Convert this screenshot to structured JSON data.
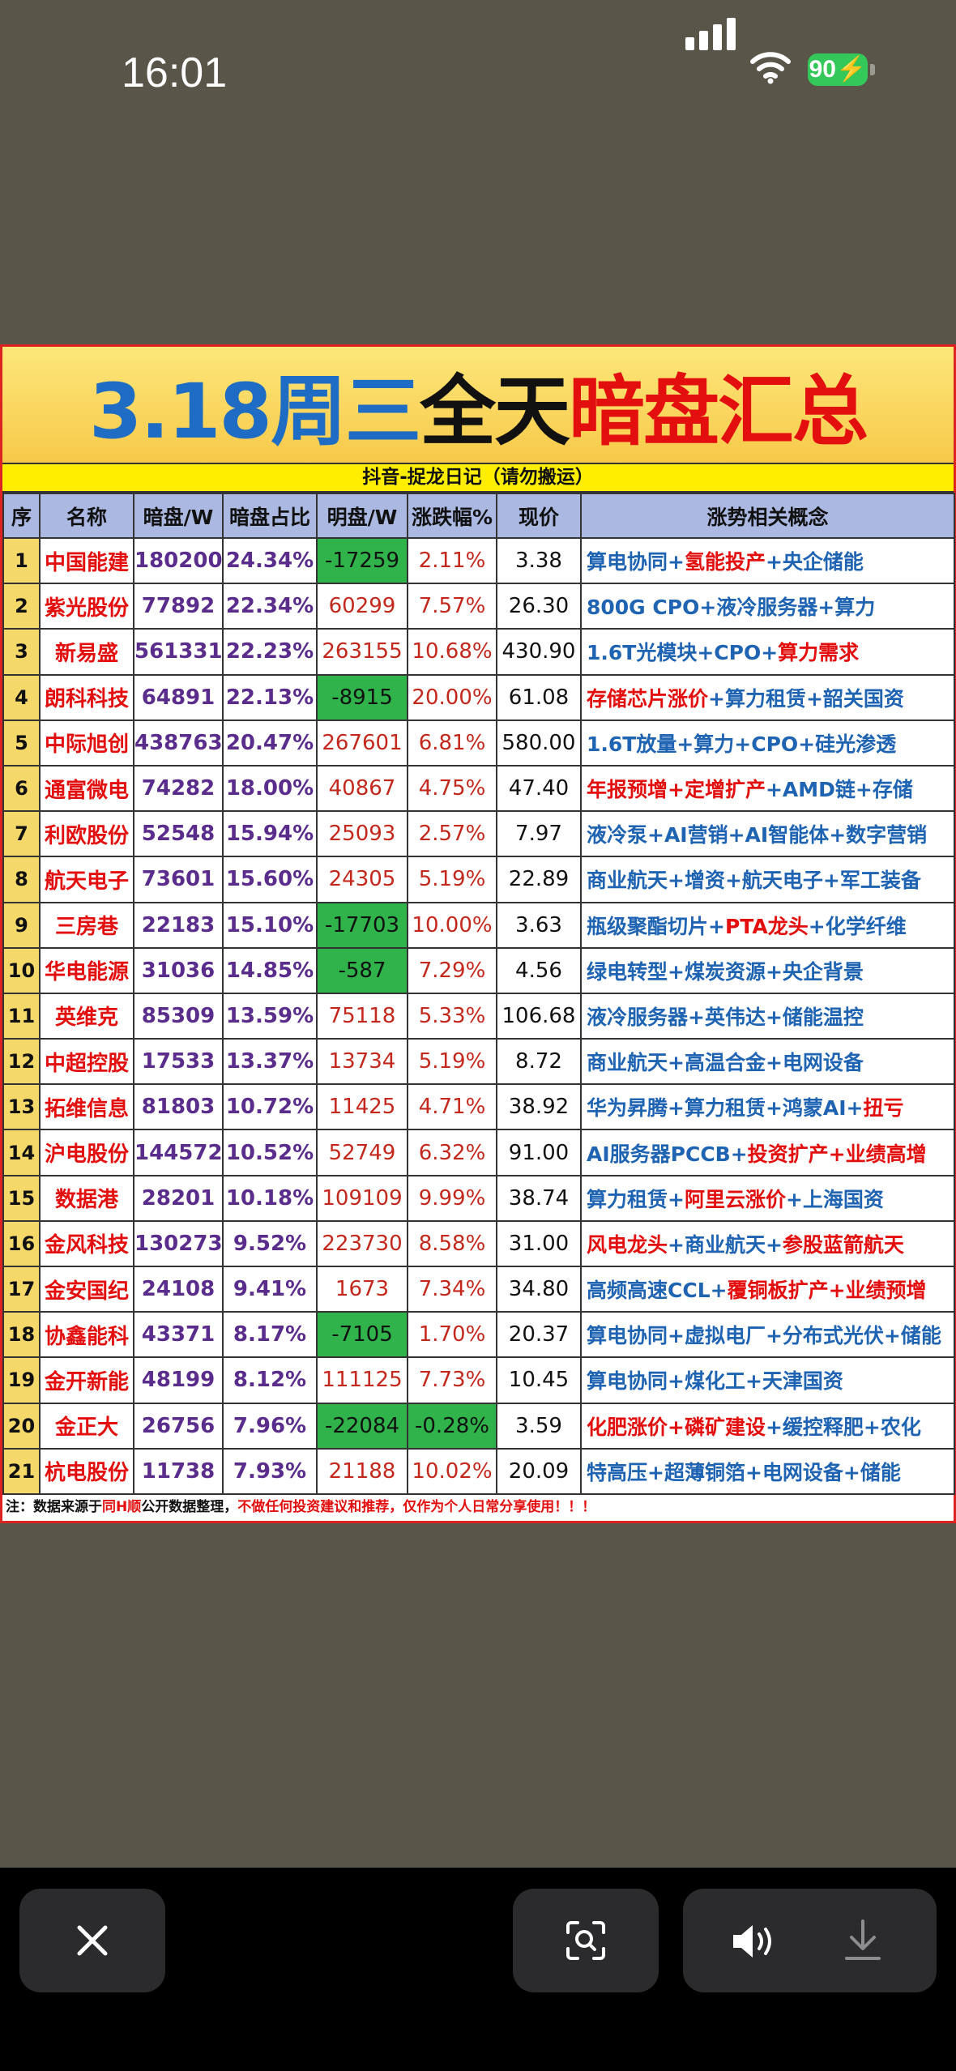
{
  "status": {
    "time": "16:01",
    "battery": "90"
  },
  "sheet": {
    "title_part1": "3.18周三",
    "title_part2": "全天",
    "title_part3": "暗盘汇总",
    "subtitle": "抖音-捉龙日记（请勿搬运）",
    "headers": [
      "序",
      "名称",
      "暗盘/W",
      "暗盘占比",
      "明盘/W",
      "涨跌幅%",
      "现价",
      "涨势相关概念"
    ],
    "rows": [
      {
        "idx": "1",
        "name": "中国能建",
        "dark": "180200",
        "pct": "24.34%",
        "ming": "-17259",
        "zd": "2.11%",
        "price": "3.38",
        "concept": [
          [
            "算电协同+",
            0
          ],
          [
            "氢能投产",
            1
          ],
          [
            "+央企储能",
            0
          ]
        ]
      },
      {
        "idx": "2",
        "name": "紫光股份",
        "dark": "77892",
        "pct": "22.34%",
        "ming": "60299",
        "zd": "7.57%",
        "price": "26.30",
        "concept": [
          [
            "800G CPO+液冷服务器+算力",
            0
          ]
        ]
      },
      {
        "idx": "3",
        "name": "新易盛",
        "dark": "561331",
        "pct": "22.23%",
        "ming": "263155",
        "zd": "10.68%",
        "price": "430.90",
        "concept": [
          [
            "1.6T光模块+CPO+",
            0
          ],
          [
            "算力需求",
            1
          ]
        ]
      },
      {
        "idx": "4",
        "name": "朗科科技",
        "dark": "64891",
        "pct": "22.13%",
        "ming": "-8915",
        "zd": "20.00%",
        "price": "61.08",
        "concept": [
          [
            "存储芯片涨价",
            1
          ],
          [
            "+算力租赁+韶关国资",
            0
          ]
        ]
      },
      {
        "idx": "5",
        "name": "中际旭创",
        "dark": "438763",
        "pct": "20.47%",
        "ming": "267601",
        "zd": "6.81%",
        "price": "580.00",
        "concept": [
          [
            "1.6T放量+算力+CPO+硅光渗透",
            0
          ]
        ]
      },
      {
        "idx": "6",
        "name": "通富微电",
        "dark": "74282",
        "pct": "18.00%",
        "ming": "40867",
        "zd": "4.75%",
        "price": "47.40",
        "concept": [
          [
            "年报预增+定增扩产",
            1
          ],
          [
            "+AMD链+存储",
            0
          ]
        ]
      },
      {
        "idx": "7",
        "name": "利欧股份",
        "dark": "52548",
        "pct": "15.94%",
        "ming": "25093",
        "zd": "2.57%",
        "price": "7.97",
        "concept": [
          [
            "液冷泵+AI营销+AI智能体+数字营销",
            0
          ]
        ]
      },
      {
        "idx": "8",
        "name": "航天电子",
        "dark": "73601",
        "pct": "15.60%",
        "ming": "24305",
        "zd": "5.19%",
        "price": "22.89",
        "concept": [
          [
            "商业航天+增资+航天电子+军工装备",
            0
          ]
        ]
      },
      {
        "idx": "9",
        "name": "三房巷",
        "dark": "22183",
        "pct": "15.10%",
        "ming": "-17703",
        "zd": "10.00%",
        "price": "3.63",
        "concept": [
          [
            "瓶级聚酯切片+",
            0
          ],
          [
            "PTA龙头",
            1
          ],
          [
            "+化学纤维",
            0
          ]
        ]
      },
      {
        "idx": "10",
        "name": "华电能源",
        "dark": "31036",
        "pct": "14.85%",
        "ming": "-587",
        "zd": "7.29%",
        "price": "4.56",
        "concept": [
          [
            "绿电转型+煤炭资源+央企背景",
            0
          ]
        ]
      },
      {
        "idx": "11",
        "name": "英维克",
        "dark": "85309",
        "pct": "13.59%",
        "ming": "75118",
        "zd": "5.33%",
        "price": "106.68",
        "concept": [
          [
            "液冷服务器+英伟达+储能温控",
            0
          ]
        ]
      },
      {
        "idx": "12",
        "name": "中超控股",
        "dark": "17533",
        "pct": "13.37%",
        "ming": "13734",
        "zd": "5.19%",
        "price": "8.72",
        "concept": [
          [
            "商业航天+高温合金+电网设备",
            0
          ]
        ]
      },
      {
        "idx": "13",
        "name": "拓维信息",
        "dark": "81803",
        "pct": "10.72%",
        "ming": "11425",
        "zd": "4.71%",
        "price": "38.92",
        "concept": [
          [
            "华为昇腾+算力租赁+鸿蒙AI+",
            0
          ],
          [
            "扭亏",
            1
          ]
        ]
      },
      {
        "idx": "14",
        "name": "沪电股份",
        "dark": "144572",
        "pct": "10.52%",
        "ming": "52749",
        "zd": "6.32%",
        "price": "91.00",
        "concept": [
          [
            "AI服务器PCCB+",
            0
          ],
          [
            "投资扩产+业绩高增",
            1
          ]
        ]
      },
      {
        "idx": "15",
        "name": "数据港",
        "dark": "28201",
        "pct": "10.18%",
        "ming": "109109",
        "zd": "9.99%",
        "price": "38.74",
        "concept": [
          [
            "算力租赁+",
            0
          ],
          [
            "阿里云涨价",
            1
          ],
          [
            "+上海国资",
            0
          ]
        ]
      },
      {
        "idx": "16",
        "name": "金风科技",
        "dark": "130273",
        "pct": "9.52%",
        "ming": "223730",
        "zd": "8.58%",
        "price": "31.00",
        "concept": [
          [
            "风电龙头",
            1
          ],
          [
            "+商业航天+",
            0
          ],
          [
            "参股蓝箭航天",
            1
          ]
        ]
      },
      {
        "idx": "17",
        "name": "金安国纪",
        "dark": "24108",
        "pct": "9.41%",
        "ming": "1673",
        "zd": "7.34%",
        "price": "34.80",
        "concept": [
          [
            "高频高速CCL+",
            0
          ],
          [
            "覆铜板扩产+业绩预增",
            1
          ]
        ]
      },
      {
        "idx": "18",
        "name": "协鑫能科",
        "dark": "43371",
        "pct": "8.17%",
        "ming": "-7105",
        "zd": "1.70%",
        "price": "20.37",
        "concept": [
          [
            "算电协同+虚拟电厂+分布式光伏+储能",
            0
          ]
        ]
      },
      {
        "idx": "19",
        "name": "金开新能",
        "dark": "48199",
        "pct": "8.12%",
        "ming": "111125",
        "zd": "7.73%",
        "price": "10.45",
        "concept": [
          [
            "算电协同+煤化工+天津国资",
            0
          ]
        ]
      },
      {
        "idx": "20",
        "name": "金正大",
        "dark": "26756",
        "pct": "7.96%",
        "ming": "-22084",
        "zd": "-0.28%",
        "price": "3.59",
        "concept": [
          [
            "化肥涨价+磷矿建设",
            1
          ],
          [
            "+缓控释肥+农化",
            0
          ]
        ]
      },
      {
        "idx": "21",
        "name": "杭电股份",
        "dark": "11738",
        "pct": "7.93%",
        "ming": "21188",
        "zd": "10.02%",
        "price": "20.09",
        "concept": [
          [
            "特高压+超薄铜箔+电网设备+储能",
            0
          ]
        ]
      }
    ],
    "note_a": "注：数据来源于",
    "note_b": "同H顺",
    "note_c": "公开数据整理，",
    "note_d": "不做任何投资建议和推荐，仅作为个人日常分享使用！！！"
  }
}
